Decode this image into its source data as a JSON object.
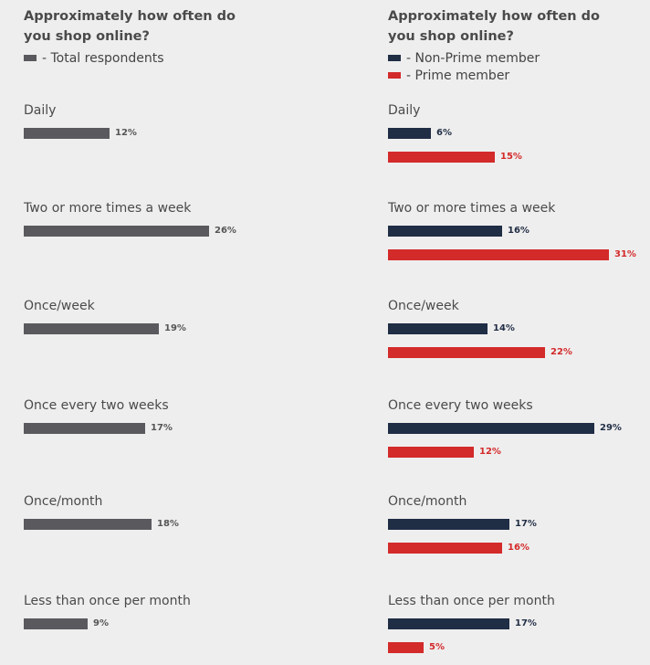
{
  "chart_data": [
    {
      "type": "bar",
      "orientation": "horizontal",
      "title": "Approximately how often do you shop online?",
      "legend": [
        "- Total respondents"
      ],
      "categories": [
        "Daily",
        "Two or more times a week",
        "Once/week",
        "Once every two weeks",
        "Once/month",
        "Less than once per month"
      ],
      "series": [
        {
          "name": "- Total respondents",
          "color": "#5a5a5e",
          "values": [
            12,
            26,
            19,
            17,
            18,
            9
          ],
          "labels": [
            "12%",
            "26%",
            "19%",
            "17%",
            "18%",
            "9%"
          ]
        }
      ]
    },
    {
      "type": "bar",
      "orientation": "horizontal",
      "title": "Approximately how often do you shop online?",
      "legend": [
        "- Non-Prime member",
        "- Prime member"
      ],
      "categories": [
        "Daily",
        "Two or more times a week",
        "Once/week",
        "Once every two weeks",
        "Once/month",
        "Less than once per month"
      ],
      "series": [
        {
          "name": "- Non-Prime member",
          "color": "#1f2d45",
          "values": [
            6,
            16,
            14,
            29,
            17,
            17
          ],
          "labels": [
            "6%",
            "16%",
            "14%",
            "29%",
            "17%",
            "17%"
          ]
        },
        {
          "name": "- Prime member",
          "color": "#d32a2a",
          "values": [
            15,
            31,
            22,
            12,
            16,
            5
          ],
          "labels": [
            "15%",
            "31%",
            "22%",
            "12%",
            "16%",
            "5%"
          ]
        }
      ]
    }
  ]
}
